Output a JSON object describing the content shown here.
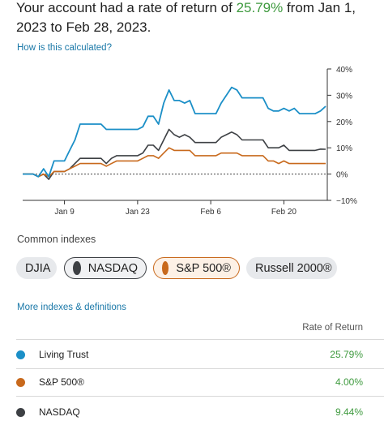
{
  "headline": {
    "prefix": "Your account had a rate of return of ",
    "percent": "25.79%",
    "suffix": " from Jan 1, 2023 to Feb 28, 2023."
  },
  "links": {
    "how_calculated": "How is this calculated?",
    "more_indexes": "More indexes & definitions"
  },
  "chart_data": {
    "type": "line",
    "x": [
      "2023-01-01",
      "2023-01-02",
      "2023-01-03",
      "2023-01-04",
      "2023-01-05",
      "2023-01-06",
      "2023-01-07",
      "2023-01-08",
      "2023-01-09",
      "2023-01-10",
      "2023-01-11",
      "2023-01-12",
      "2023-01-13",
      "2023-01-14",
      "2023-01-15",
      "2023-01-16",
      "2023-01-17",
      "2023-01-18",
      "2023-01-19",
      "2023-01-20",
      "2023-01-21",
      "2023-01-22",
      "2023-01-23",
      "2023-01-24",
      "2023-01-25",
      "2023-01-26",
      "2023-01-27",
      "2023-01-28",
      "2023-01-29",
      "2023-01-30",
      "2023-01-31",
      "2023-02-01",
      "2023-02-02",
      "2023-02-03",
      "2023-02-04",
      "2023-02-05",
      "2023-02-06",
      "2023-02-07",
      "2023-02-08",
      "2023-02-09",
      "2023-02-10",
      "2023-02-11",
      "2023-02-12",
      "2023-02-13",
      "2023-02-14",
      "2023-02-15",
      "2023-02-16",
      "2023-02-17",
      "2023-02-18",
      "2023-02-19",
      "2023-02-20",
      "2023-02-21",
      "2023-02-22",
      "2023-02-23",
      "2023-02-24",
      "2023-02-25",
      "2023-02-26",
      "2023-02-27",
      "2023-02-28"
    ],
    "series": [
      {
        "name": "Living Trust",
        "color": "#1b8fc7",
        "values": [
          0,
          0,
          0,
          -1,
          2,
          -1,
          5,
          5,
          5,
          9,
          13,
          19,
          19,
          19,
          19,
          19,
          17,
          17,
          17,
          17,
          17,
          17,
          17,
          18,
          22,
          22,
          19,
          27,
          32,
          28,
          28,
          27,
          28,
          23,
          23,
          23,
          23,
          23,
          27,
          30,
          33,
          32,
          29,
          29,
          29,
          29,
          29,
          25,
          24,
          24,
          25,
          24,
          25,
          23,
          23,
          23,
          23,
          24,
          25.79
        ]
      },
      {
        "name": "NASDAQ",
        "color": "#3d4044",
        "values": [
          0,
          0,
          0,
          -1,
          0,
          -2,
          1,
          1,
          1,
          2,
          4,
          6,
          6,
          6,
          6,
          6,
          4,
          6,
          7,
          7,
          7,
          7,
          7,
          8,
          11,
          11,
          9,
          13,
          17,
          15,
          14,
          15,
          14,
          12,
          12,
          12,
          12,
          12,
          14,
          15,
          16,
          15,
          13,
          13,
          13,
          13,
          13,
          10,
          10,
          10,
          11,
          9,
          9,
          9,
          9,
          9,
          9,
          9.5,
          9.44
        ]
      },
      {
        "name": "S&P 500®",
        "color": "#c8691c",
        "values": [
          0,
          0,
          0,
          -1,
          0,
          -1,
          1,
          1,
          1,
          2,
          3,
          4,
          4,
          4,
          4,
          4,
          3,
          4,
          5,
          5,
          5,
          5,
          5,
          6,
          7,
          7,
          6,
          8,
          10,
          9,
          9,
          9,
          9,
          7,
          7,
          7,
          7,
          7,
          8,
          8,
          8,
          8,
          7,
          7,
          7,
          7,
          7,
          5,
          5,
          4,
          5,
          4,
          4,
          4,
          4,
          4,
          4,
          4,
          4.0
        ]
      }
    ],
    "y_ticks": [
      "40%",
      "30%",
      "20%",
      "10%",
      "0%",
      "−10%"
    ],
    "y_range": [
      -10,
      40
    ],
    "x_ticks": [
      {
        "label": "Jan 9",
        "x": "2023-01-09"
      },
      {
        "label": "Jan 23",
        "x": "2023-01-23"
      },
      {
        "label": "Feb 6",
        "x": "2023-02-06"
      },
      {
        "label": "Feb 20",
        "x": "2023-02-20"
      }
    ],
    "zero_line": "dashed",
    "grid": false
  },
  "indexes": {
    "title": "Common indexes",
    "chips": [
      {
        "label": "DJIA",
        "selected": false,
        "dot_color": ""
      },
      {
        "label": "NASDAQ",
        "selected": true,
        "dot_color": "#3d4044"
      },
      {
        "label": "S&P 500®",
        "selected": true,
        "dot_color": "#c8691c"
      },
      {
        "label": "Russell 2000®",
        "selected": false,
        "dot_color": ""
      }
    ]
  },
  "table": {
    "header": "Rate of Return",
    "rows": [
      {
        "name": "Living Trust",
        "value": "25.79%",
        "color": "#1b8fc7"
      },
      {
        "name": "S&P 500®",
        "value": "4.00%",
        "color": "#c8691c"
      },
      {
        "name": "NASDAQ",
        "value": "9.44%",
        "color": "#3d4044"
      }
    ]
  }
}
